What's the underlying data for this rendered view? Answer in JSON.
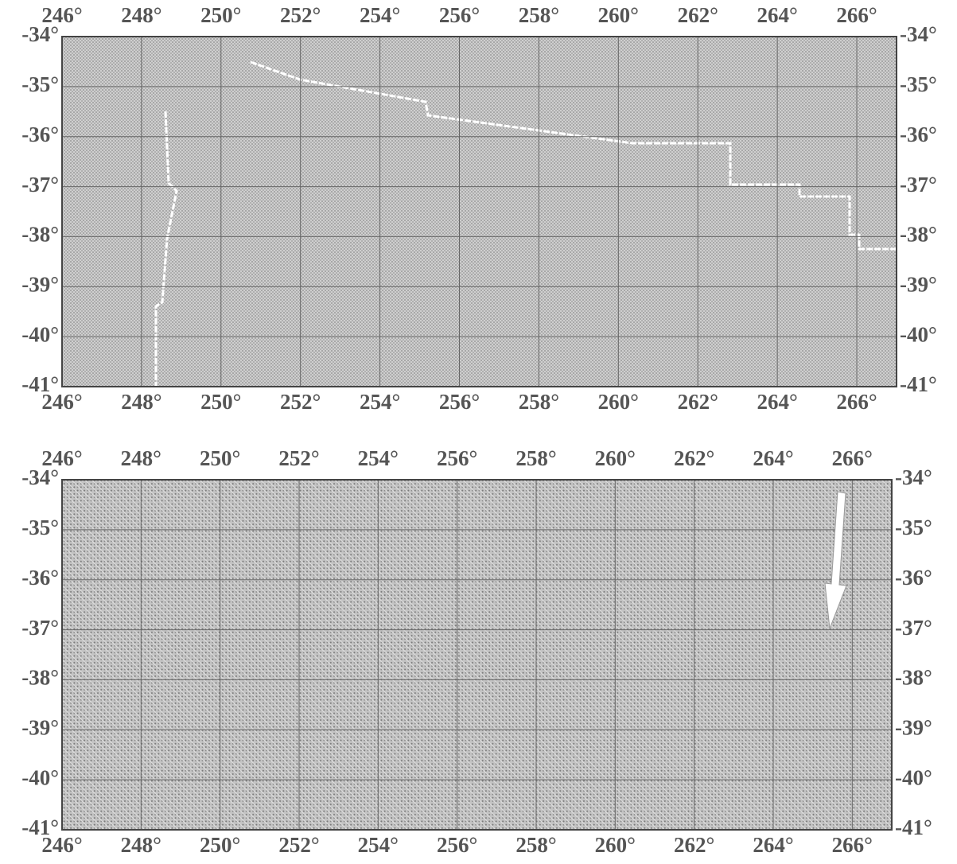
{
  "chart_data": [
    {
      "type": "map",
      "xlim": [
        246,
        267
      ],
      "ylim": [
        -41,
        -34
      ],
      "xticks": [
        {
          "value": 246,
          "label": "246°"
        },
        {
          "value": 248,
          "label": "248°"
        },
        {
          "value": 250,
          "label": "250°"
        },
        {
          "value": 252,
          "label": "252°"
        },
        {
          "value": 254,
          "label": "254°"
        },
        {
          "value": 256,
          "label": "256°"
        },
        {
          "value": 258,
          "label": "258°"
        },
        {
          "value": 260,
          "label": "260°"
        },
        {
          "value": 262,
          "label": "262°"
        },
        {
          "value": 264,
          "label": "264°"
        },
        {
          "value": 266,
          "label": "266°"
        }
      ],
      "yticks": [
        {
          "value": -34,
          "label": "-34°"
        },
        {
          "value": -35,
          "label": "-35°"
        },
        {
          "value": -36,
          "label": "-36°"
        },
        {
          "value": -37,
          "label": "-37°"
        },
        {
          "value": -38,
          "label": "-38°"
        },
        {
          "value": -39,
          "label": "-39°"
        },
        {
          "value": -40,
          "label": "-40°"
        },
        {
          "value": -41,
          "label": "-41°"
        }
      ],
      "grid": true
    },
    {
      "type": "map",
      "xlim": [
        246,
        267
      ],
      "ylim": [
        -41,
        -34
      ],
      "xticks": [
        {
          "value": 246,
          "label": "246°"
        },
        {
          "value": 248,
          "label": "248°"
        },
        {
          "value": 250,
          "label": "250°"
        },
        {
          "value": 252,
          "label": "252°"
        },
        {
          "value": 254,
          "label": "254°"
        },
        {
          "value": 256,
          "label": "256°"
        },
        {
          "value": 258,
          "label": "258°"
        },
        {
          "value": 260,
          "label": "260°"
        },
        {
          "value": 262,
          "label": "262°"
        },
        {
          "value": 264,
          "label": "264°"
        },
        {
          "value": 266,
          "label": "266°"
        }
      ],
      "yticks": [
        {
          "value": -34,
          "label": "-34°"
        },
        {
          "value": -35,
          "label": "-35°"
        },
        {
          "value": -36,
          "label": "-36°"
        },
        {
          "value": -37,
          "label": "-37°"
        },
        {
          "value": -38,
          "label": "-38°"
        },
        {
          "value": -39,
          "label": "-39°"
        },
        {
          "value": -40,
          "label": "-40°"
        },
        {
          "value": -41,
          "label": "-41°"
        }
      ],
      "grid": true
    }
  ]
}
